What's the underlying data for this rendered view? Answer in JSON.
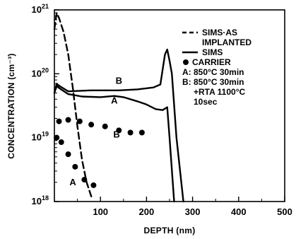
{
  "chart_data": {
    "type": "line",
    "x_axis": {
      "label": "DEPTH (nm)",
      "range": [
        0,
        500
      ],
      "ticks": [
        100,
        200,
        300,
        400,
        500
      ],
      "tick_labels": [
        "100",
        "200",
        "300",
        "400",
        "500"
      ]
    },
    "y_axis": {
      "label": "CONCENTRATION (cm⁻³)",
      "scale": "log",
      "range": [
        1e+18,
        1e+21
      ],
      "ticks": [
        1e+18,
        1e+19,
        1e+20,
        1e+21
      ],
      "tick_labels": [
        {
          "base": "10",
          "exp": "18"
        },
        {
          "base": "10",
          "exp": "19"
        },
        {
          "base": "10",
          "exp": "20"
        },
        {
          "base": "10",
          "exp": "21"
        }
      ]
    },
    "series": [
      {
        "name": "SIMS·AS IMPLANTED",
        "style": "dashed",
        "points": [
          [
            0,
            5e+20
          ],
          [
            5,
            9e+20
          ],
          [
            10,
            7.5e+20
          ],
          [
            20,
            4.5e+20
          ],
          [
            30,
            2e+20
          ],
          [
            40,
            6e+19
          ],
          [
            50,
            1.5e+19
          ],
          [
            60,
            4.5e+18
          ],
          [
            70,
            2e+18
          ],
          [
            80,
            1.2e+18
          ]
        ]
      },
      {
        "name": "SIMS",
        "label": "A",
        "style": "solid",
        "points": [
          [
            0,
            5e+19
          ],
          [
            5,
            6.5e+19
          ],
          [
            10,
            6e+19
          ],
          [
            30,
            4.8e+19
          ],
          [
            60,
            4.4e+19
          ],
          [
            100,
            4.3e+19
          ],
          [
            130,
            4.5e+19
          ],
          [
            150,
            4.3e+19
          ],
          [
            180,
            3.7e+19
          ],
          [
            200,
            3.3e+19
          ],
          [
            220,
            2.8e+19
          ],
          [
            235,
            2.7e+19
          ],
          [
            245,
            3e+19
          ],
          [
            250,
            1e+19
          ],
          [
            260,
            1e+18
          ]
        ]
      },
      {
        "name": "SIMS",
        "label": "B",
        "style": "solid",
        "points": [
          [
            0,
            5e+19
          ],
          [
            5,
            7e+19
          ],
          [
            10,
            6.5e+19
          ],
          [
            30,
            5.3e+19
          ],
          [
            80,
            5.5e+19
          ],
          [
            140,
            5.5e+19
          ],
          [
            180,
            5.7e+19
          ],
          [
            215,
            6.1e+19
          ],
          [
            230,
            6.8e+19
          ],
          [
            240,
            2e+20
          ],
          [
            245,
            2.4e+20
          ],
          [
            250,
            1.6e+20
          ],
          [
            255,
            1e+20
          ],
          [
            265,
            1e+19
          ],
          [
            280,
            1e+18
          ]
        ]
      },
      {
        "name": "CARRIER",
        "label": "A",
        "style": "markers",
        "points": [
          [
            5,
            1e+19
          ],
          [
            15,
            8.5e+18
          ],
          [
            30,
            5.5e+18
          ],
          [
            45,
            3.5e+18
          ],
          [
            65,
            2.2e+18
          ],
          [
            85,
            1.8e+18
          ]
        ]
      },
      {
        "name": "CARRIER",
        "label": "B",
        "style": "markers",
        "points": [
          [
            10,
            1.8e+19
          ],
          [
            30,
            1.9e+19
          ],
          [
            55,
            1.8e+19
          ],
          [
            80,
            1.6e+19
          ],
          [
            110,
            1.5e+19
          ],
          [
            140,
            1.3e+19
          ],
          [
            165,
            1.2e+19
          ],
          [
            190,
            1.2e+19
          ]
        ]
      }
    ],
    "annotations": [
      {
        "text": "B",
        "x": 140,
        "y": 7e+19
      },
      {
        "text": "A",
        "x": 130,
        "y": 3.4e+19
      },
      {
        "text": "B",
        "x": 135,
        "y": 1e+19
      },
      {
        "text": "A",
        "x": 40,
        "y": 1.8e+18
      }
    ],
    "legend": {
      "placement": "top-right",
      "items": [
        {
          "marker": "dashed",
          "lines": [
            "SIMS·AS",
            "IMPLANTED"
          ]
        },
        {
          "marker": "solid",
          "lines": [
            "SIMS"
          ]
        },
        {
          "marker": "dot",
          "lines": [
            "CARRIER"
          ]
        },
        {
          "marker": "none",
          "lines": [
            "A: 850°C 30min"
          ]
        },
        {
          "marker": "none",
          "lines": [
            "B: 850°C 30min",
            "+RTA 1100°C",
            "10sec"
          ]
        }
      ]
    },
    "grid": false
  }
}
